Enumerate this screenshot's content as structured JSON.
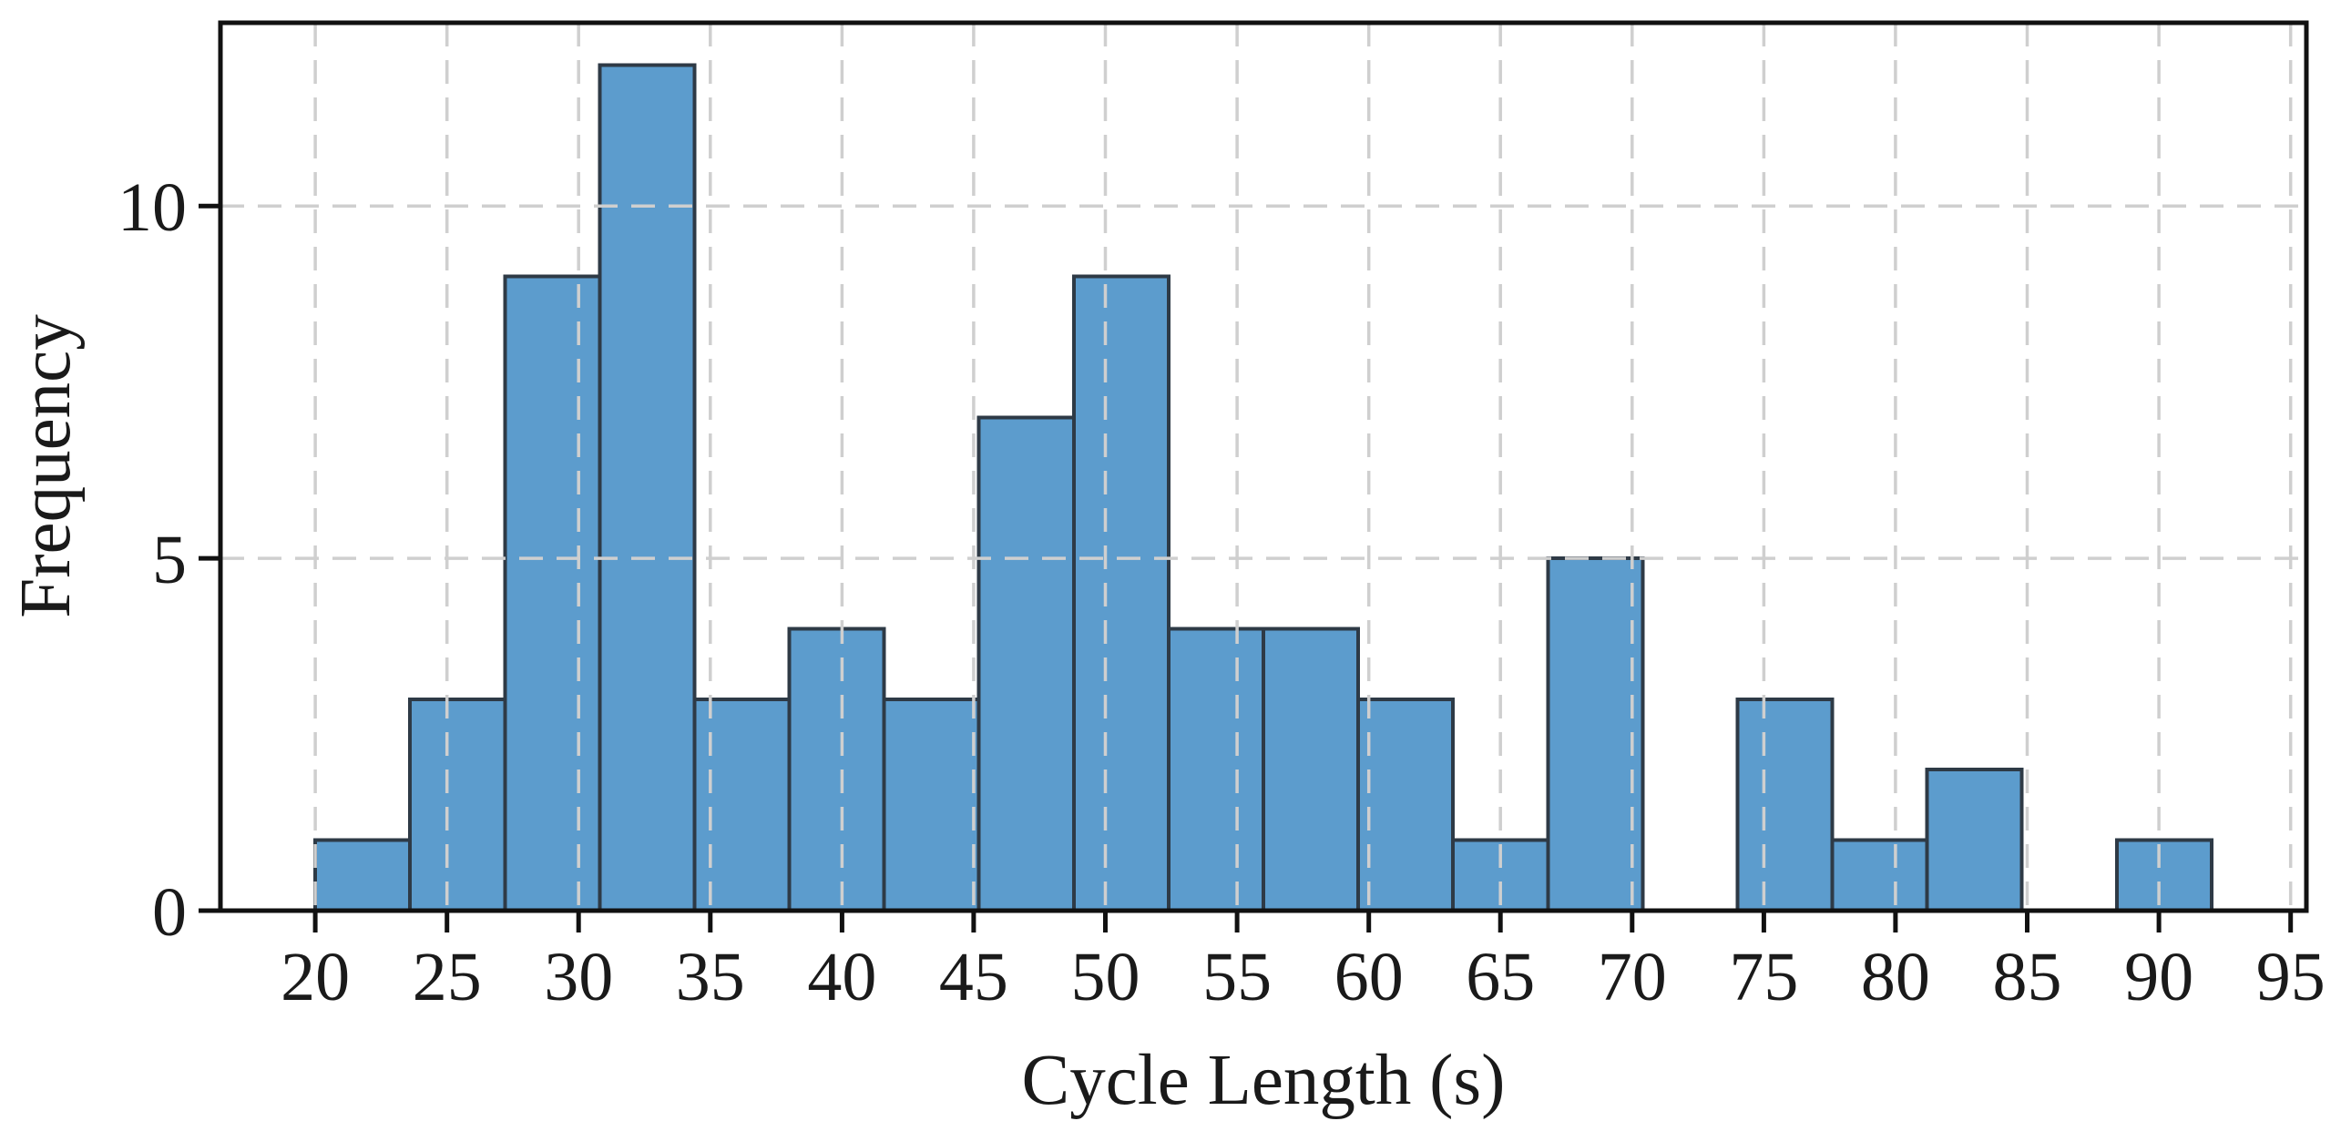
{
  "chart_data": {
    "type": "bar",
    "subtype": "histogram",
    "title": "",
    "xlabel": "Cycle Length (s)",
    "ylabel": "Frequency",
    "bin_edges": [
      20.0,
      23.6,
      27.2,
      30.8,
      34.4,
      38.0,
      41.6,
      45.2,
      48.8,
      52.4,
      56.0,
      59.6,
      63.2,
      66.8,
      70.4,
      74.0,
      77.6,
      81.2,
      84.8,
      88.4,
      92.0
    ],
    "counts": [
      1,
      3,
      9,
      12,
      3,
      4,
      3,
      7,
      9,
      4,
      4,
      3,
      1,
      5,
      0,
      3,
      1,
      2,
      0,
      1
    ],
    "xticks": [
      20,
      25,
      30,
      35,
      40,
      45,
      50,
      55,
      60,
      65,
      70,
      75,
      80,
      85,
      90,
      95
    ],
    "yticks": [
      0,
      5,
      10
    ],
    "xlim": [
      16.4,
      95.6
    ],
    "ylim": [
      0,
      12.6
    ],
    "grid": {
      "visible": true,
      "style": "dashed",
      "on_top": true
    },
    "legend": {
      "visible": false
    },
    "colors": {
      "bar_fill": "#5C9CCD",
      "bar_edge": "#2E3A46",
      "grid": "#CFCFCF",
      "axis": "#111111",
      "text": "#1A1A1A",
      "background": "#FFFFFF"
    }
  }
}
